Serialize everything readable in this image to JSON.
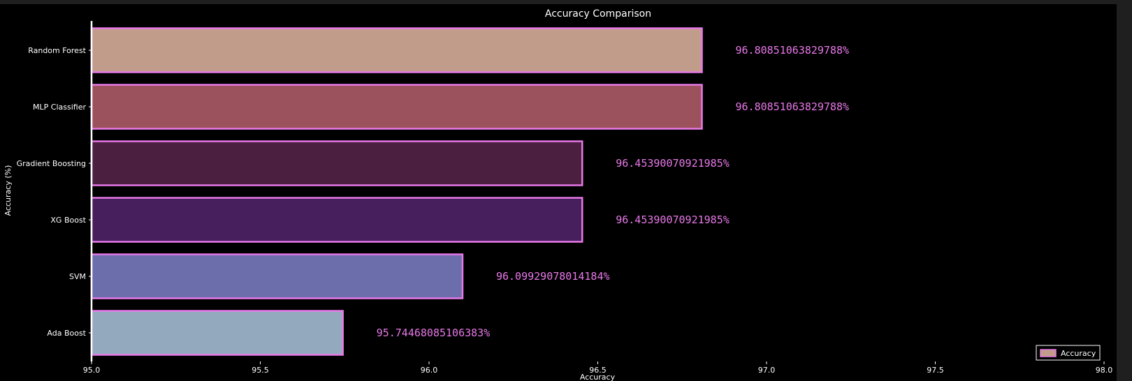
{
  "chart_data": {
    "type": "bar",
    "orientation": "horizontal",
    "title": "Accuracy Comparison",
    "xlabel": "Accuracy",
    "ylabel": "Accuracy (%)",
    "xlim": [
      95.0,
      98.0
    ],
    "xticks": [
      95.0,
      95.5,
      96.0,
      96.5,
      97.0,
      97.5,
      98.0
    ],
    "xtick_labels": [
      "95.0",
      "95.5",
      "96.0",
      "96.5",
      "97.0",
      "97.5",
      "98.0"
    ],
    "categories": [
      "Random Forest",
      "MLP Classifier",
      "Gradient Boosting",
      "XG Boost",
      "SVM",
      "Ada Boost"
    ],
    "values": [
      96.80851063829788,
      96.80851063829788,
      96.45390070921985,
      96.45390070921985,
      96.09929078014184,
      95.74468085106383
    ],
    "value_labels": [
      "96.80851063829788%",
      "96.80851063829788%",
      "96.45390070921985%",
      "96.45390070921985%",
      "96.09929078014184%",
      "95.74468085106383%"
    ],
    "bar_colors": [
      "#c19c8a",
      "#9c525d",
      "#4b1f3f",
      "#461f5c",
      "#6b6eab",
      "#93aabe"
    ],
    "edge_color": "#e879e8",
    "value_label_color": "#e879e8",
    "series": [
      {
        "name": "Accuracy"
      }
    ],
    "legend": {
      "label": "Accuracy",
      "placement": "lower-right"
    },
    "grid": false
  }
}
